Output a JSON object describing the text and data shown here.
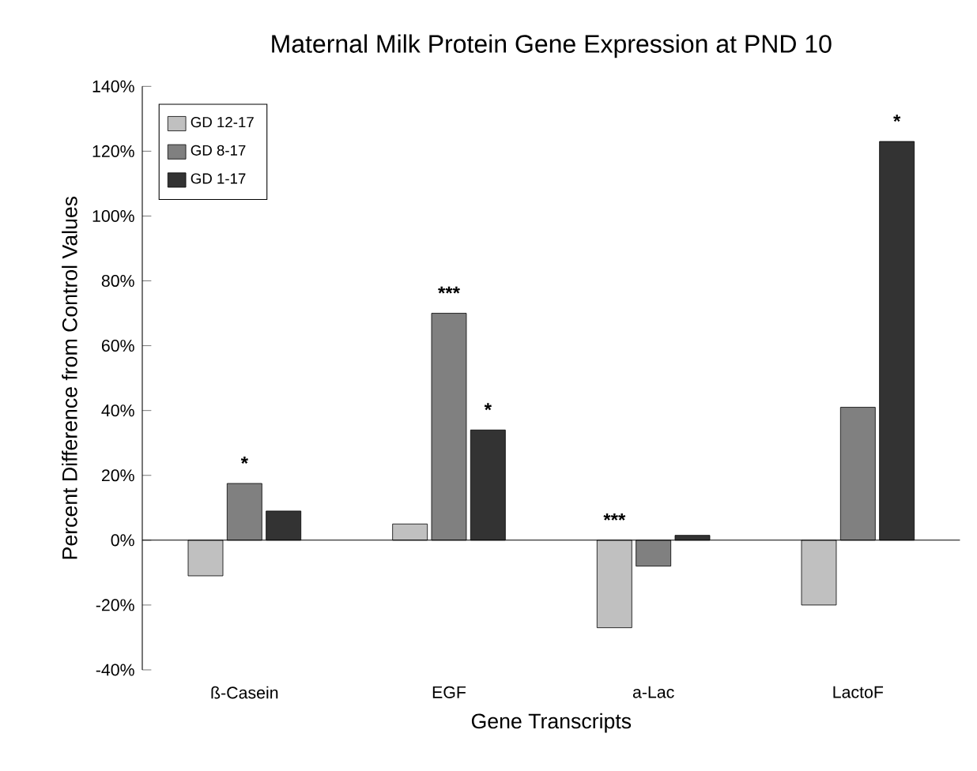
{
  "chart_data": {
    "type": "bar",
    "title": "Maternal Milk Protein Gene Expression at PND 10",
    "xlabel": "Gene Transcripts",
    "ylabel": "Percent Difference from Control Values",
    "categories": [
      "ß-Casein",
      "EGF",
      "a-Lac",
      "LactoF"
    ],
    "series": [
      {
        "name": "GD 12-17",
        "color": "#c0c0c0",
        "values": [
          -11,
          5,
          -27,
          -20
        ],
        "value_labels": [
          null,
          null,
          "***",
          null
        ]
      },
      {
        "name": "GD 8-17",
        "color": "#808080",
        "values": [
          17.5,
          70,
          -8,
          41
        ],
        "value_labels": [
          "*",
          "***",
          null,
          null
        ]
      },
      {
        "name": "GD 1-17",
        "color": "#333333",
        "values": [
          9,
          34,
          1.5,
          123
        ],
        "value_labels": [
          null,
          "*",
          null,
          "*"
        ]
      }
    ],
    "ylim": [
      -40,
      140
    ],
    "yticks": [
      {
        "value": -40,
        "label": "-40%"
      },
      {
        "value": -20,
        "label": "-20%"
      },
      {
        "value": 0,
        "label": "0%"
      },
      {
        "value": 20,
        "label": "20%"
      },
      {
        "value": 40,
        "label": "40%"
      },
      {
        "value": 60,
        "label": "60%"
      },
      {
        "value": 80,
        "label": "80%"
      },
      {
        "value": 100,
        "label": "100%"
      },
      {
        "value": 120,
        "label": "120%"
      },
      {
        "value": 140,
        "label": "140%"
      }
    ],
    "legend": "top left"
  }
}
